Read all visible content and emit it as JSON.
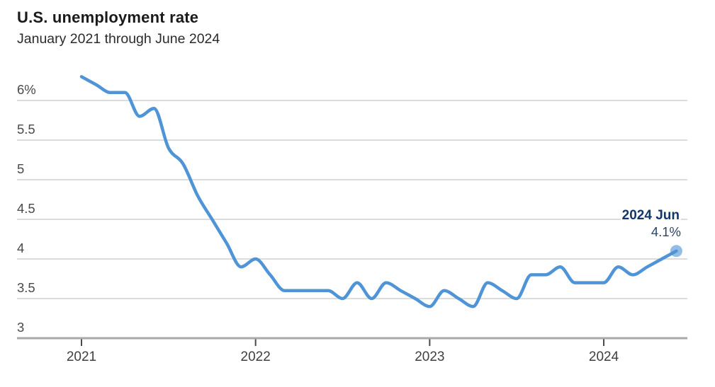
{
  "header": {
    "title": "U.S. unemployment rate",
    "subtitle": "January 2021 through June 2024"
  },
  "chart_data": {
    "type": "line",
    "title": "U.S. unemployment rate",
    "subtitle": "January 2021 through June 2024",
    "unit": "%",
    "grid": true,
    "legend": "none",
    "x": [
      "2021-01",
      "2021-02",
      "2021-03",
      "2021-04",
      "2021-05",
      "2021-06",
      "2021-07",
      "2021-08",
      "2021-09",
      "2021-10",
      "2021-11",
      "2021-12",
      "2022-01",
      "2022-02",
      "2022-03",
      "2022-04",
      "2022-05",
      "2022-06",
      "2022-07",
      "2022-08",
      "2022-09",
      "2022-10",
      "2022-11",
      "2022-12",
      "2023-01",
      "2023-02",
      "2023-03",
      "2023-04",
      "2023-05",
      "2023-06",
      "2023-07",
      "2023-08",
      "2023-09",
      "2023-10",
      "2023-11",
      "2023-12",
      "2024-01",
      "2024-02",
      "2024-03",
      "2024-04",
      "2024-05",
      "2024-06"
    ],
    "series": [
      {
        "name": "U.S. unemployment rate",
        "values": [
          6.3,
          6.2,
          6.1,
          6.1,
          5.8,
          5.9,
          5.4,
          5.2,
          4.8,
          4.5,
          4.2,
          3.9,
          4.0,
          3.8,
          3.6,
          3.6,
          3.6,
          3.6,
          3.5,
          3.7,
          3.5,
          3.7,
          3.6,
          3.5,
          3.4,
          3.6,
          3.5,
          3.4,
          3.7,
          3.6,
          3.5,
          3.8,
          3.8,
          3.9,
          3.7,
          3.7,
          3.7,
          3.9,
          3.8,
          3.9,
          4.0,
          4.1
        ]
      }
    ],
    "y_axis": {
      "range": [
        3.0,
        6.5
      ],
      "ticks": [
        {
          "label": "6%",
          "value": 6.0
        },
        {
          "label": "5.5",
          "value": 5.5
        },
        {
          "label": "5",
          "value": 5.0
        },
        {
          "label": "4.5",
          "value": 4.5
        },
        {
          "label": "4",
          "value": 4.0
        },
        {
          "label": "3.5",
          "value": 3.5
        },
        {
          "label": "3",
          "value": 3.0
        }
      ]
    },
    "x_axis": {
      "ticks": [
        {
          "label": "2021",
          "month_index": 0
        },
        {
          "label": "2022",
          "month_index": 12
        },
        {
          "label": "2023",
          "month_index": 24
        },
        {
          "label": "2024",
          "month_index": 36
        }
      ]
    },
    "annotation": {
      "label": "2024 Jun",
      "value_label": "4.1%"
    },
    "colors": {
      "line": "#4e94d6",
      "end_dot": "#91bde6",
      "gridline": "#dcdcdc",
      "axis_line": "#a9a9a9",
      "tick": "#4a4a4a",
      "title": "#1a1a1a",
      "subtitle": "#2b2b2b",
      "axis_label": "#4a4a4a",
      "annotation_label": "#14366b",
      "annotation_value": "#2d4663"
    }
  }
}
